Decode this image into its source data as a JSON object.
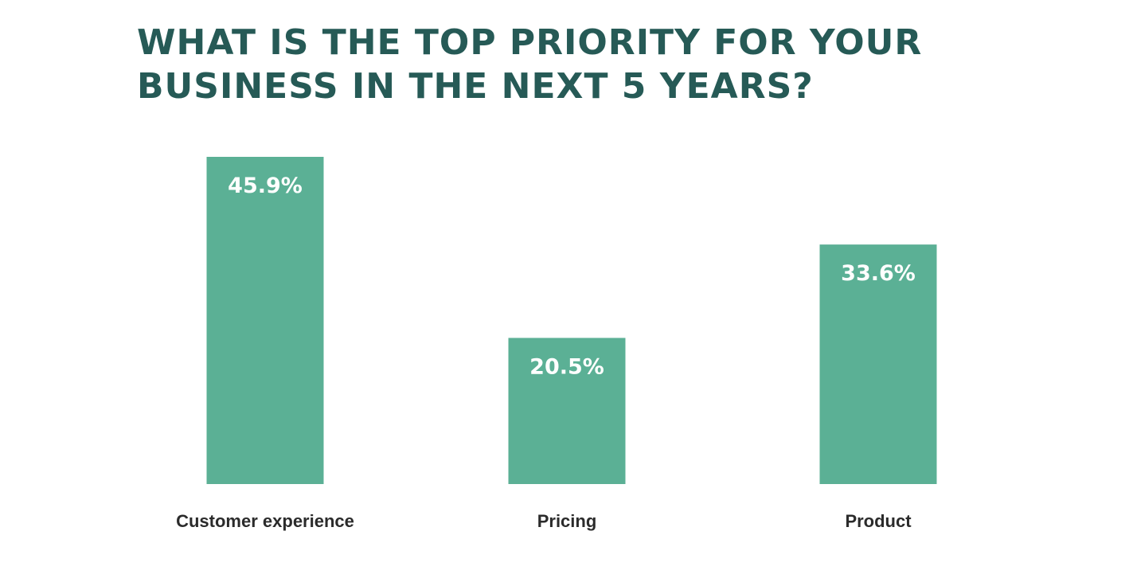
{
  "title_lines": [
    "WHAT IS THE TOP PRIORITY FOR YOUR",
    "BUSINESS IN THE NEXT 5 YEARS?"
  ],
  "colors": {
    "title": "#265a56",
    "bar": "#5bb095",
    "bar_label": "#ffffff",
    "category_label": "#2b2b2b",
    "background": "#ffffff"
  },
  "chart_data": {
    "type": "bar",
    "title": "WHAT IS THE TOP PRIORITY FOR YOUR BUSINESS IN THE NEXT 5 YEARS?",
    "categories": [
      "Customer experience",
      "Pricing",
      "Product"
    ],
    "values": [
      45.9,
      20.5,
      33.6
    ],
    "labels": [
      "45.9%",
      "20.5%",
      "33.6%"
    ],
    "xlabel": "",
    "ylabel": "",
    "ylim": [
      0,
      45.9
    ],
    "grid": false,
    "legend": "none"
  }
}
